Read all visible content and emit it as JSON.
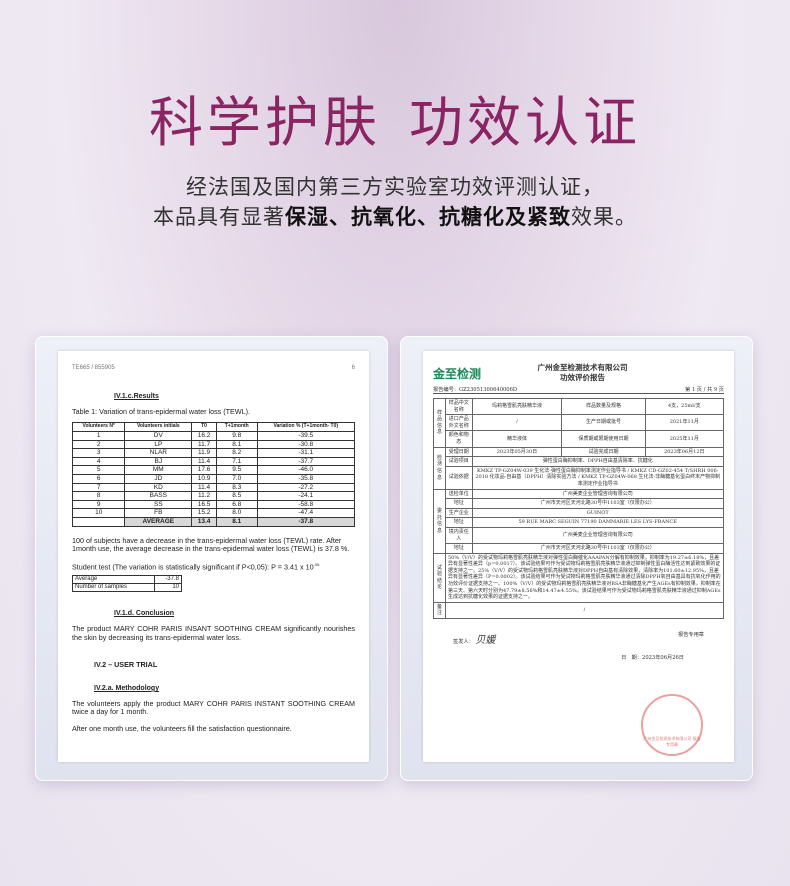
{
  "header": {
    "title_a": "科学护肤",
    "title_b": "功效认证",
    "line1": "经法国及国内第三方实验室功效评测认证，",
    "line2_a": "本品具有显著",
    "line2_b1": "保湿",
    "sep": "、",
    "line2_b2": "抗氧化",
    "line2_b3": "抗糖化",
    "line2_and": "及",
    "line2_b4": "紧致",
    "line2_c": "效果。",
    "colors": {
      "title": "#8a2462"
    }
  },
  "left_doc": {
    "ref": "TE665 / 855905",
    "page": "6",
    "h1": "IV.1.c.Results",
    "table_caption": "Table 1: Variation of trans-epidermal water loss (TEWL).",
    "columns": [
      "Volunteers N°",
      "Volunteers initials",
      "T0",
      "T+1month",
      "Variation % (T+1month- T0)"
    ],
    "rows": [
      [
        "1",
        "DV",
        "16.2",
        "9.8",
        "-39.5"
      ],
      [
        "2",
        "LP",
        "11.7",
        "8.1",
        "-30.8"
      ],
      [
        "3",
        "NLAR",
        "11.9",
        "8.2",
        "-31.1"
      ],
      [
        "4",
        "BJ",
        "11.4",
        "7.1",
        "-37.7"
      ],
      [
        "5",
        "MM",
        "17.6",
        "9.5",
        "-46.0"
      ],
      [
        "6",
        "JD",
        "10.9",
        "7.0",
        "-35.8"
      ],
      [
        "7",
        "KD",
        "11.4",
        "8.3",
        "-27.2"
      ],
      [
        "8",
        "BASS",
        "11.2",
        "8.5",
        "-24.1"
      ],
      [
        "9",
        "SS",
        "16.5",
        "6.8",
        "-58.8"
      ],
      [
        "10",
        "FB",
        "15.2",
        "8.0",
        "-47.4"
      ]
    ],
    "average": [
      "",
      "AVERAGE",
      "13.4",
      "8.1",
      "-37.8"
    ],
    "p1": "100 of subjects have a decrease in the trans-epidermal water loss (TEWL) rate. After 1month use, the average decrease in the trans-epidermal water loss (TEWL) is 37.8 %.",
    "p2": "Student test (The variation is statistically significant if P<0,05): P = 3.41 x 10",
    "p2_exp": "-05",
    "stats": [
      [
        "Average",
        "-37.8"
      ],
      [
        "Number of samples",
        "10"
      ]
    ],
    "h2": "IV.1.d. Conclusion",
    "p3": "The product MARY COHR PARIS INSANT SOOTHING CREAM significantly nourishes the skin by decreasing its trans-epidermal water loss.",
    "h3": "IV.2 – USER TRIAL",
    "h4": "IV.2.a. Methodology",
    "p4": "The volunteers apply the product MARY COHR PARIS INSTANT SOOTHING CREAM twice a day for 1 month.",
    "p5": "After one month use, the volunteers fill the satisfaction questionnaire."
  },
  "right_doc": {
    "logo": "金至检测",
    "company": "广州金至检测技术有限公司",
    "report_title": "功效评价报告",
    "report_no": "报告编号：GZ23051300640006D",
    "page": "第 1 页 / 共 9 页",
    "rows": [
      [
        "样品信息",
        "样品中文名称",
        "玛莉格雪肌亮肤精华液",
        "样品数量及规格",
        "4支，25ml/支"
      ],
      [
        "",
        "进口产品外文名称",
        "/",
        "生产日期或批号",
        "2021年11月"
      ],
      [
        "",
        "颜色和物态",
        "精华液体",
        "保质期或限期使用日期",
        "2025年11月"
      ],
      [
        "检测信息",
        "受理日期",
        "2023年05月30日",
        "试验完成日期",
        "2023年06月12日"
      ]
    ],
    "test_item_label": "试验项目",
    "test_item": "弹性蛋白酶抑制率、DPPH自由基清除率、抗糖化",
    "basis_label": "试验依据",
    "basis": "KMKZ TP-GZ04W-039 生化法-弹性蛋白酶抑制率测定作业指导书 / KMKZ CD-GZ02-454 T/SHRH 006-2018 化妆品-自由基（DPPH）清除实验方法 / KMKZ TP-GZ04W-068 生化法-非酶糖基化蛋白终末产物抑制率测定作业指导书",
    "client_label": "委托信息",
    "client": [
      [
        "送检单位",
        "广州美麦企业管理咨询有限公司"
      ],
      [
        "地址",
        "广州市天河区天河北路30号中1103室（仅限办公）"
      ],
      [
        "生产企业",
        "GUINOT"
      ],
      [
        "地址",
        "59 RUE MARC SEGUIN 77190 DAMMARIE LES LYS-FRANCE"
      ],
      [
        "境内责任人",
        "广州美麦企业管理咨询有限公司"
      ],
      [
        "地址",
        "广州市天河区天河北路30号中1103室（仅限办公）"
      ]
    ],
    "conclusion_label": "试验结论",
    "conclusion": "50%（V/V）的受试物玛莉格雪肌亮肤精华液对弹性蛋白酶催化AAAPAN分解有抑制效果，抑制率为19.27±6.18%，且差异有显著性差异（p=0.0017）。该试验结果可作为受试物玛莉格雪肌亮肤精华液通过抑制弹性蛋白酶活性达到紧致效果的证据支持之一。25%（V/V）的受试物玛莉格雪肌亮肤精华液对DPPH自由基有清除效果，清除率为101.60±12.95%，且差异有显著性差异（P=0.0002）。该试验结果可作为受试物玛莉格雪肌亮肤精华液通过清除DPPH氧自由基具有抗氧化作用的功效评价证据支持之一。100%（V/V）的受试物玛莉格雪肌亮肤精华液对BSA非酶糖基化产生AGEs有抑制效果，抑制率在第三天、第六天时分别为47.79±8.56%和14.47±4.55%。该试验结果可作为受试物玛莉格雪肌亮肤精华液通过抑制AGEs生成达到抗糖化效果的证据支持之一。",
    "remark_label": "备注",
    "remark": "/",
    "signer_label": "签发人：",
    "signature": "贝媛",
    "seal_label": "报告专用章",
    "date": "日　期：2023年06月26日",
    "stamp": "广州金至检测技术有限公司 报告专用章"
  }
}
